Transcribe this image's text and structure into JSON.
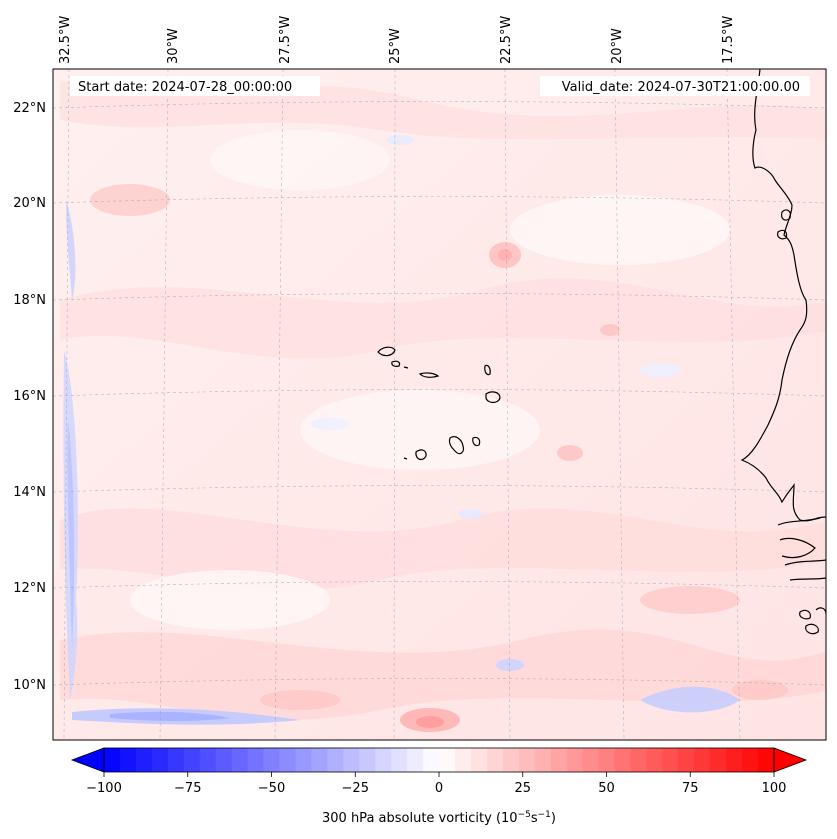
{
  "map": {
    "start_date_text": "Start date: 2024-07-28_00:00:00",
    "valid_date_text": "Valid_date: 2024-07-30T21:00:00.00",
    "longitude_labels": [
      "32.5°W",
      "30°W",
      "27.5°W",
      "25°W",
      "22.5°W",
      "20°W",
      "17.5°W"
    ],
    "latitude_labels": [
      "22°N",
      "20°N",
      "18°N",
      "16°N",
      "14°N",
      "12°N",
      "10°N"
    ],
    "field": "300 hPa absolute vorticity",
    "units_text": "(10",
    "projection_note": "slightly curved lat/lon graticule",
    "colors": {
      "negative": "#0000ff",
      "neutral": "#ffffff",
      "positive": "#ff0000",
      "coastline": "#000000"
    },
    "icons": {
      "left_arrow": "colorbar-left-extension",
      "right_arrow": "colorbar-right-extension"
    }
  },
  "colorbar": {
    "ticks": [
      "−100",
      "−75",
      "−50",
      "−25",
      "0",
      "25",
      "50",
      "75",
      "100"
    ],
    "label_main": "300 hPa absolute vorticity (10",
    "label_exp1": "−5",
    "label_mid": "s",
    "label_exp2": "−1",
    "label_end": ")",
    "min": -100,
    "max": 100,
    "levels": 42
  }
}
